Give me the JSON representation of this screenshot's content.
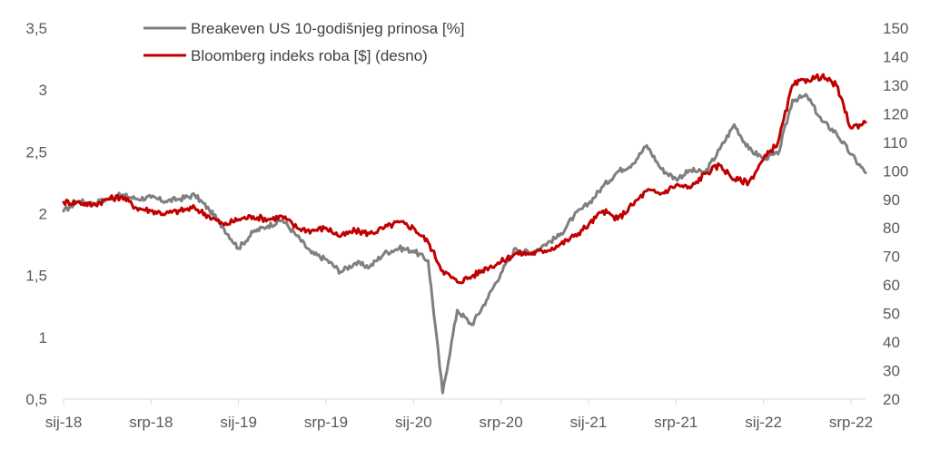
{
  "chart_data": {
    "type": "line",
    "title": "",
    "xlabel": "",
    "ylabel": "",
    "y2label": "",
    "x_tick_labels": [
      "sij-18",
      "srp-18",
      "sij-19",
      "srp-19",
      "sij-20",
      "srp-20",
      "sij-21",
      "srp-21",
      "sij-22",
      "srp-22"
    ],
    "y_left": {
      "ticks": [
        "0,5",
        "1",
        "1,5",
        "2",
        "2,5",
        "3",
        "3,5"
      ],
      "range": [
        0.5,
        3.5
      ]
    },
    "y_right": {
      "ticks": [
        "20",
        "30",
        "40",
        "50",
        "60",
        "70",
        "80",
        "90",
        "100",
        "110",
        "120",
        "130",
        "140",
        "150"
      ],
      "range": [
        20,
        150
      ]
    },
    "grid": false,
    "legend_position": "top-left",
    "series": [
      {
        "name": "Breakeven US 10-godišnjeg prinosa [%]",
        "axis": "left",
        "color": "#7f7f7f",
        "points": [
          [
            "2018-01",
            2.02
          ],
          [
            "2018-02",
            2.1
          ],
          [
            "2018-03",
            2.08
          ],
          [
            "2018-04",
            2.12
          ],
          [
            "2018-05",
            2.15
          ],
          [
            "2018-06",
            2.12
          ],
          [
            "2018-07",
            2.13
          ],
          [
            "2018-08",
            2.1
          ],
          [
            "2018-09",
            2.12
          ],
          [
            "2018-10",
            2.15
          ],
          [
            "2018-11",
            2.03
          ],
          [
            "2018-12",
            1.88
          ],
          [
            "2019-01",
            1.72
          ],
          [
            "2019-02",
            1.85
          ],
          [
            "2019-03",
            1.9
          ],
          [
            "2019-04",
            1.95
          ],
          [
            "2019-05",
            1.82
          ],
          [
            "2019-06",
            1.68
          ],
          [
            "2019-07",
            1.63
          ],
          [
            "2019-08",
            1.53
          ],
          [
            "2019-09",
            1.6
          ],
          [
            "2019-10",
            1.57
          ],
          [
            "2019-11",
            1.68
          ],
          [
            "2019-12",
            1.72
          ],
          [
            "2020-01",
            1.7
          ],
          [
            "2020-02",
            1.62
          ],
          [
            "2020-03",
            0.55
          ],
          [
            "2020-04",
            1.22
          ],
          [
            "2020-05",
            1.1
          ],
          [
            "2020-06",
            1.3
          ],
          [
            "2020-07",
            1.52
          ],
          [
            "2020-08",
            1.72
          ],
          [
            "2020-09",
            1.68
          ],
          [
            "2020-10",
            1.75
          ],
          [
            "2020-11",
            1.82
          ],
          [
            "2020-12",
            1.98
          ],
          [
            "2021-01",
            2.08
          ],
          [
            "2021-02",
            2.22
          ],
          [
            "2021-03",
            2.34
          ],
          [
            "2021-04",
            2.4
          ],
          [
            "2021-05",
            2.55
          ],
          [
            "2021-06",
            2.36
          ],
          [
            "2021-07",
            2.28
          ],
          [
            "2021-08",
            2.35
          ],
          [
            "2021-09",
            2.33
          ],
          [
            "2021-10",
            2.52
          ],
          [
            "2021-11",
            2.72
          ],
          [
            "2021-12",
            2.52
          ],
          [
            "2022-01",
            2.45
          ],
          [
            "2022-02",
            2.48
          ],
          [
            "2022-03",
            2.92
          ],
          [
            "2022-04",
            2.95
          ],
          [
            "2022-05",
            2.75
          ],
          [
            "2022-06",
            2.65
          ],
          [
            "2022-07",
            2.48
          ],
          [
            "2022-08",
            2.33
          ]
        ]
      },
      {
        "name": "Bloomberg indeks roba [$] (desno)",
        "axis": "right",
        "color": "#c00000",
        "points": [
          [
            "2018-01",
            89
          ],
          [
            "2018-02",
            89
          ],
          [
            "2018-03",
            88
          ],
          [
            "2018-04",
            90
          ],
          [
            "2018-05",
            91
          ],
          [
            "2018-06",
            87
          ],
          [
            "2018-07",
            86
          ],
          [
            "2018-08",
            85
          ],
          [
            "2018-09",
            86
          ],
          [
            "2018-10",
            87
          ],
          [
            "2018-11",
            84
          ],
          [
            "2018-12",
            81
          ],
          [
            "2019-01",
            83
          ],
          [
            "2019-02",
            84
          ],
          [
            "2019-03",
            83
          ],
          [
            "2019-04",
            84
          ],
          [
            "2019-05",
            80
          ],
          [
            "2019-06",
            79
          ],
          [
            "2019-07",
            80
          ],
          [
            "2019-08",
            77
          ],
          [
            "2019-09",
            79
          ],
          [
            "2019-10",
            78
          ],
          [
            "2019-11",
            80
          ],
          [
            "2019-12",
            82
          ],
          [
            "2020-01",
            80
          ],
          [
            "2020-02",
            75
          ],
          [
            "2020-03",
            65
          ],
          [
            "2020-04",
            61
          ],
          [
            "2020-05",
            63
          ],
          [
            "2020-06",
            66
          ],
          [
            "2020-07",
            68
          ],
          [
            "2020-08",
            71
          ],
          [
            "2020-09",
            71
          ],
          [
            "2020-10",
            72
          ],
          [
            "2020-11",
            74
          ],
          [
            "2020-12",
            77
          ],
          [
            "2021-01",
            81
          ],
          [
            "2021-02",
            86
          ],
          [
            "2021-03",
            83
          ],
          [
            "2021-04",
            88
          ],
          [
            "2021-05",
            93
          ],
          [
            "2021-06",
            92
          ],
          [
            "2021-07",
            95
          ],
          [
            "2021-08",
            94
          ],
          [
            "2021-09",
            99
          ],
          [
            "2021-10",
            102
          ],
          [
            "2021-11",
            97
          ],
          [
            "2021-12",
            96
          ],
          [
            "2022-01",
            104
          ],
          [
            "2022-02",
            110
          ],
          [
            "2022-03",
            130
          ],
          [
            "2022-04",
            132
          ],
          [
            "2022-05",
            133
          ],
          [
            "2022-06",
            130
          ],
          [
            "2022-07",
            115
          ],
          [
            "2022-08",
            117
          ]
        ]
      }
    ]
  }
}
